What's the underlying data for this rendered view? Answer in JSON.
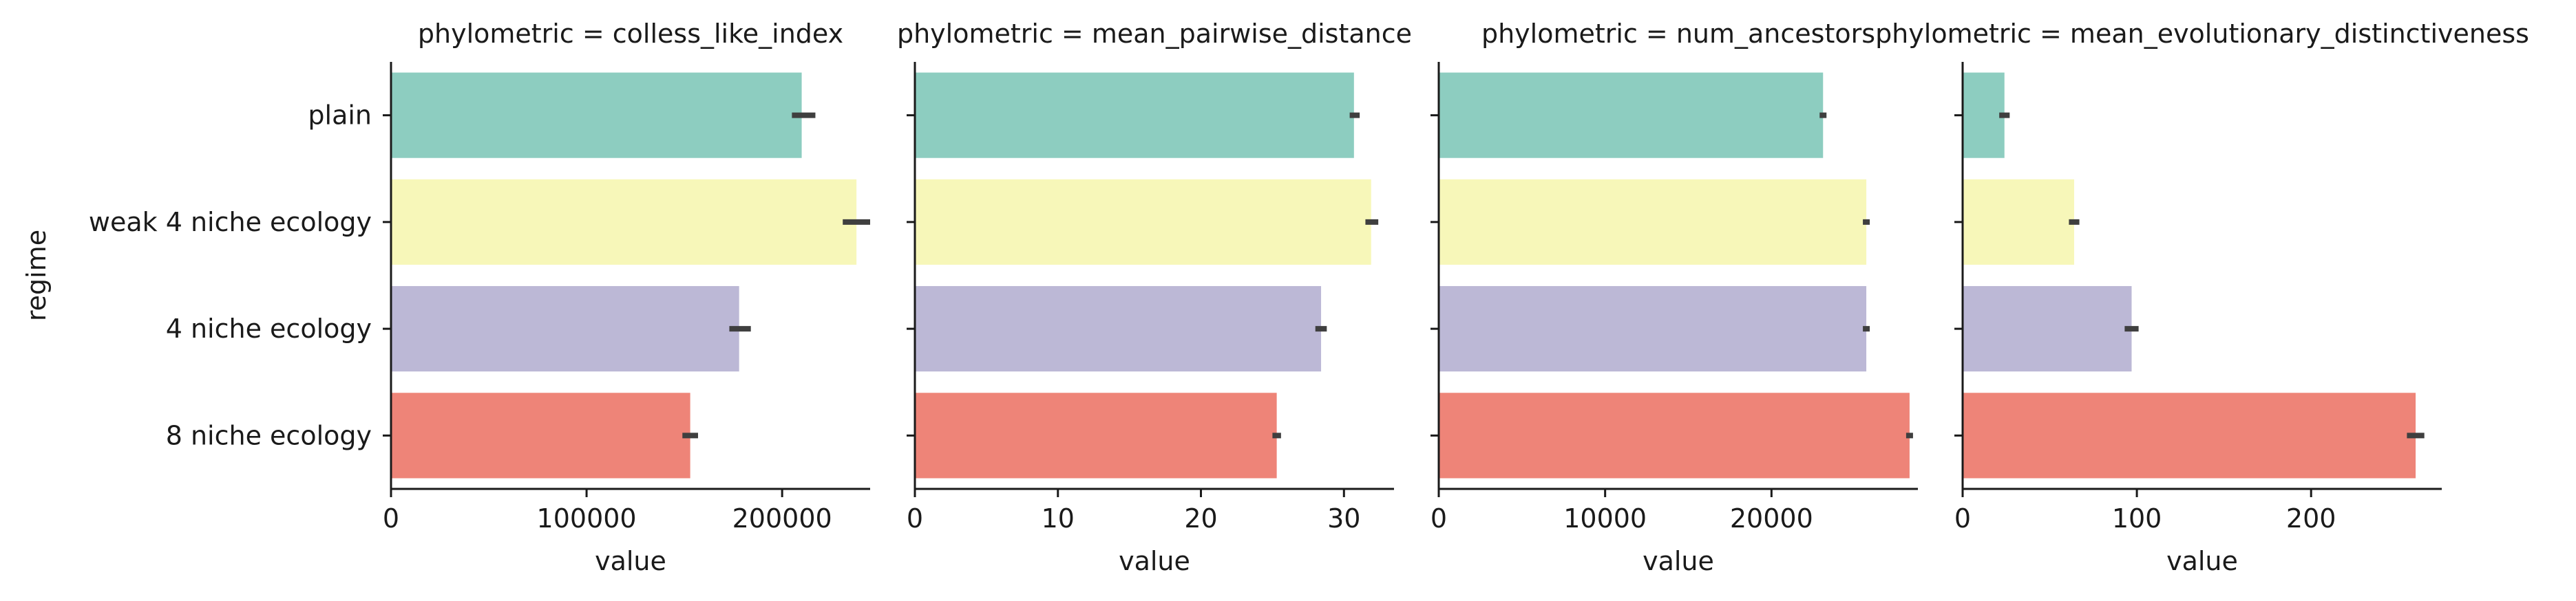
{
  "chart_data": {
    "type": "bar",
    "orientation": "horizontal",
    "ylabel": "regime",
    "categories": [
      "plain",
      "weak 4 niche ecology",
      "4 niche ecology",
      "8 niche ecology"
    ],
    "colors": [
      "#8dcdc0",
      "#f7f7b9",
      "#bcb8d6",
      "#ee8478"
    ],
    "errorbar_color": "#3f3f3f",
    "panels": [
      {
        "title": "phylometric = colless_like_index",
        "xlabel": "value",
        "xlim": [
          0,
          245000
        ],
        "xticks": [
          0,
          100000,
          200000
        ],
        "tick_labels": [
          "0",
          "100000",
          "200000"
        ],
        "values": [
          210000,
          238000,
          178000,
          153000
        ],
        "err_low": [
          205000,
          231000,
          173000,
          149000
        ],
        "err_high": [
          217000,
          245000,
          184000,
          157000
        ]
      },
      {
        "title": "phylometric = mean_pairwise_distance",
        "xlabel": "value",
        "xlim": [
          0,
          33.5
        ],
        "xticks": [
          0,
          10,
          20,
          30
        ],
        "tick_labels": [
          "0",
          "10",
          "20",
          "30"
        ],
        "values": [
          30.7,
          31.9,
          28.4,
          25.3
        ],
        "err_low": [
          30.4,
          31.5,
          28.0,
          25.0
        ],
        "err_high": [
          31.1,
          32.4,
          28.8,
          25.6
        ]
      },
      {
        "title": "phylometric = num_ancestors",
        "xlabel": "value",
        "xlim": [
          0,
          28800
        ],
        "xticks": [
          0,
          10000,
          20000
        ],
        "tick_labels": [
          "0",
          "10000",
          "20000"
        ],
        "values": [
          23100,
          25700,
          25700,
          28300
        ],
        "err_low": [
          23100,
          25550,
          25550,
          28150
        ],
        "err_high": [
          23100,
          25850,
          25850,
          28450
        ]
      },
      {
        "title": "phylometric = mean_evolutionary_distinctiveness",
        "xlabel": "value",
        "xlim": [
          0,
          275
        ],
        "xticks": [
          0,
          100,
          200
        ],
        "tick_labels": [
          "0",
          "100",
          "200"
        ],
        "values": [
          24,
          64,
          97,
          260
        ],
        "err_low": [
          21,
          61,
          93,
          255
        ],
        "err_high": [
          27,
          67,
          101,
          265
        ]
      }
    ]
  }
}
